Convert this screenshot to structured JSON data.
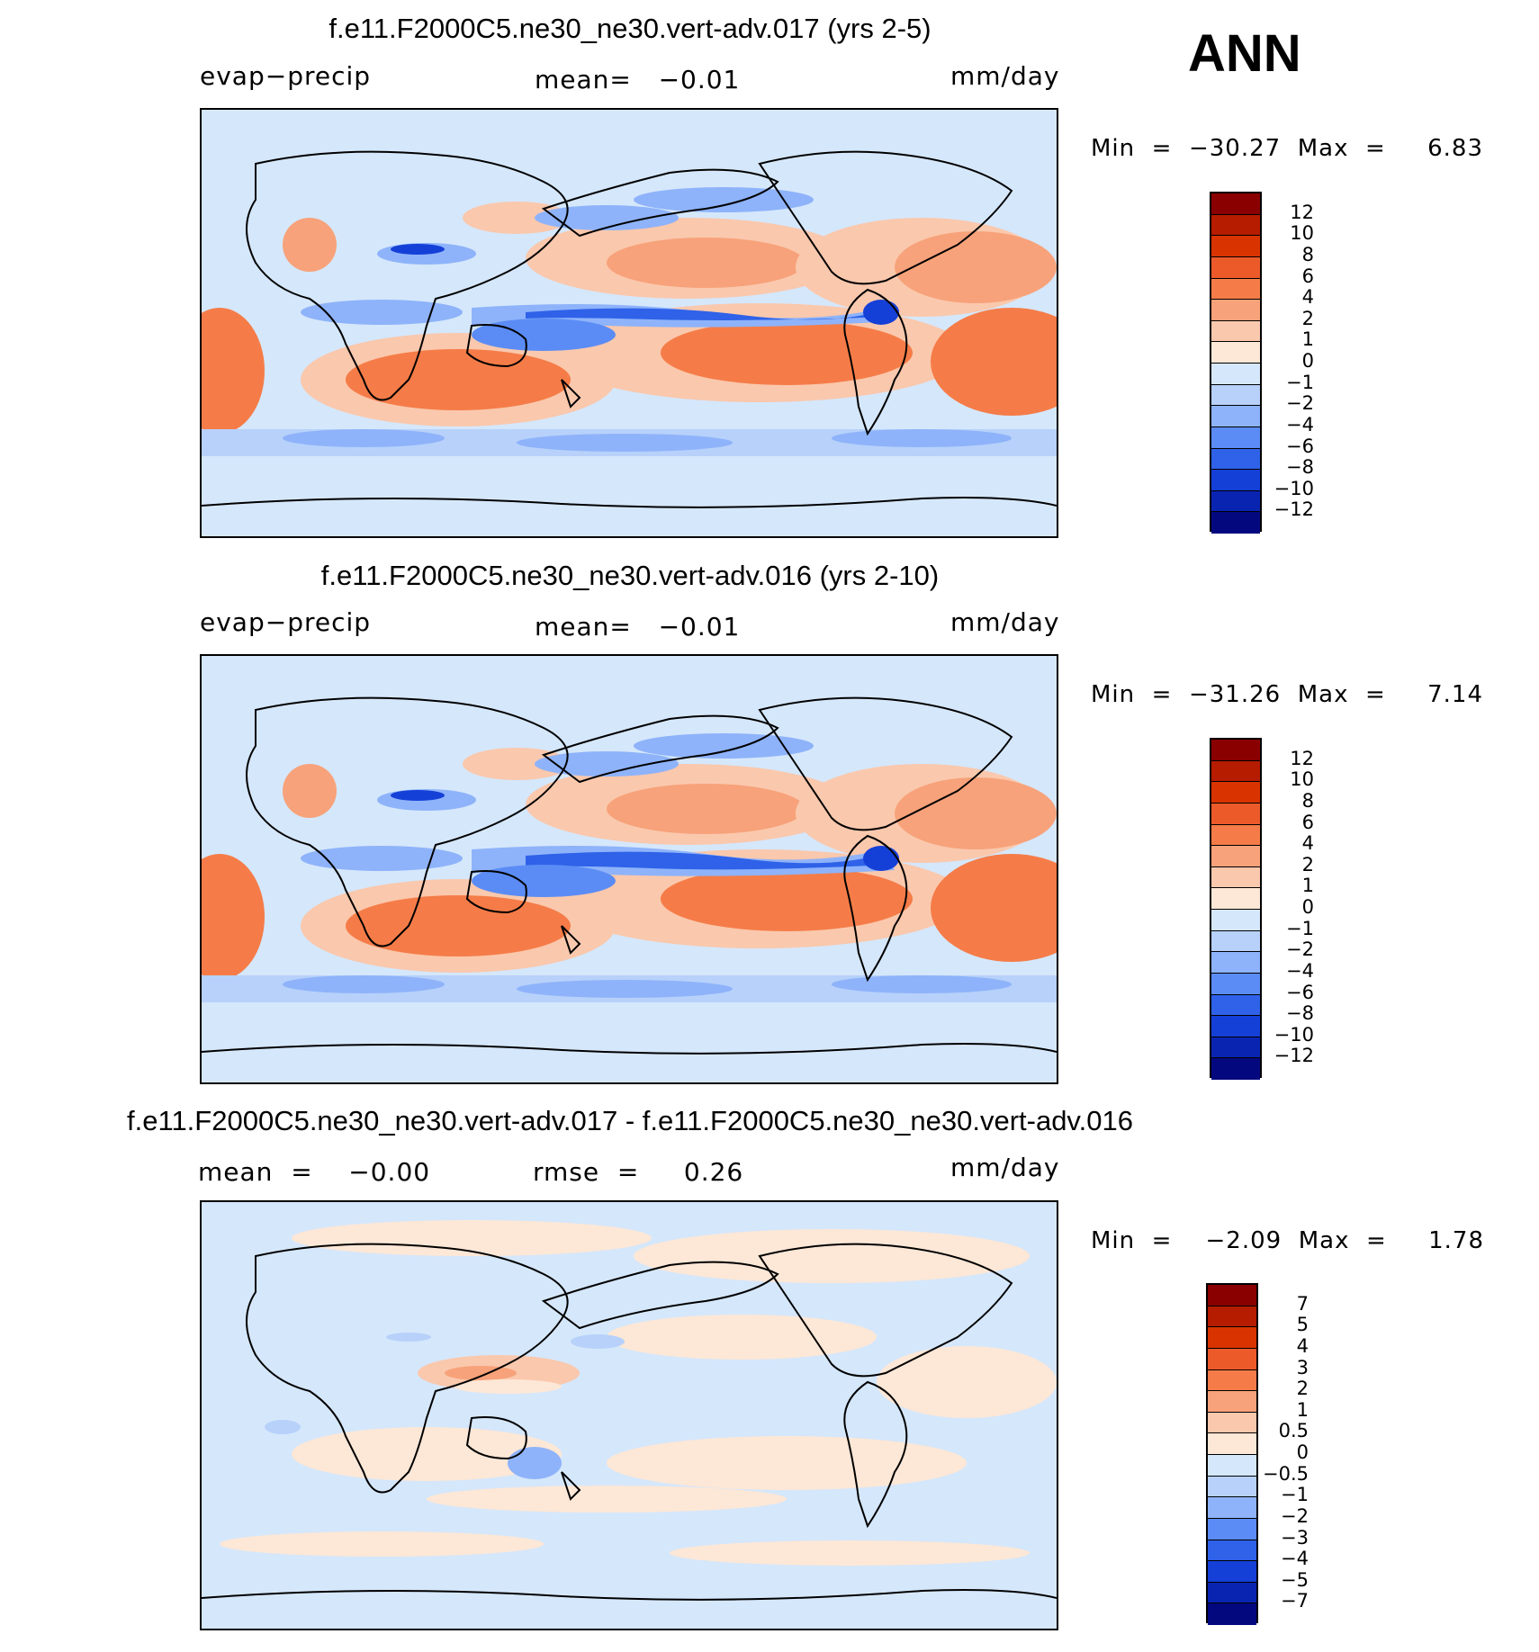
{
  "season": "ANN",
  "panels": [
    {
      "title": "f.e11.F2000C5.ne30_ne30.vert-adv.017 (yrs 2-5)",
      "left_label": "evap−precip",
      "center_label": "mean=   −0.01",
      "right_label": "mm/day",
      "min_max": "Min  =  −30.27  Max  =     6.83",
      "legend_levels": [
        "12",
        "10",
        "8",
        "6",
        "4",
        "2",
        "1",
        "0",
        "−1",
        "−2",
        "−4",
        "−6",
        "−8",
        "−10",
        "−12"
      ],
      "legend_colors": [
        "#8a0000",
        "#b51c00",
        "#d93400",
        "#ec5a2a",
        "#f57c48",
        "#f7a27a",
        "#fac8ad",
        "#fde7d6",
        "#d5e7fb",
        "#b7d1fa",
        "#8eb3fa",
        "#5b8cf5",
        "#2f62e8",
        "#1540d7",
        "#0a24b2",
        "#04087e"
      ]
    },
    {
      "title": "f.e11.F2000C5.ne30_ne30.vert-adv.016 (yrs 2-10)",
      "left_label": "evap−precip",
      "center_label": "mean=   −0.01",
      "right_label": "mm/day",
      "min_max": "Min  =  −31.26  Max  =     7.14",
      "legend_levels": [
        "12",
        "10",
        "8",
        "6",
        "4",
        "2",
        "1",
        "0",
        "−1",
        "−2",
        "−4",
        "−6",
        "−8",
        "−10",
        "−12"
      ],
      "legend_colors": [
        "#8a0000",
        "#b51c00",
        "#d93400",
        "#ec5a2a",
        "#f57c48",
        "#f7a27a",
        "#fac8ad",
        "#fde7d6",
        "#d5e7fb",
        "#b7d1fa",
        "#8eb3fa",
        "#5b8cf5",
        "#2f62e8",
        "#1540d7",
        "#0a24b2",
        "#04087e"
      ]
    },
    {
      "title": "f.e11.F2000C5.ne30_ne30.vert-adv.017 - f.e11.F2000C5.ne30_ne30.vert-adv.016",
      "left_label": "mean  =    −0.00",
      "center_label": "rmse  =     0.26",
      "right_label": "mm/day",
      "min_max": "Min  =    −2.09  Max  =     1.78",
      "legend_levels": [
        "7",
        "5",
        "4",
        "3",
        "2",
        "1",
        "0.5",
        "0",
        "−0.5",
        "−1",
        "−2",
        "−3",
        "−4",
        "−5",
        "−7"
      ],
      "legend_colors": [
        "#8a0000",
        "#b51c00",
        "#d93400",
        "#ec5a2a",
        "#f57c48",
        "#f7a27a",
        "#fac8ad",
        "#fde7d6",
        "#d5e7fb",
        "#b7d1fa",
        "#8eb3fa",
        "#5b8cf5",
        "#2f62e8",
        "#1540d7",
        "#0a24b2",
        "#04087e"
      ]
    }
  ],
  "colors": {
    "ocean_neutral": "#d5e7fb",
    "coastline": "#000000"
  }
}
